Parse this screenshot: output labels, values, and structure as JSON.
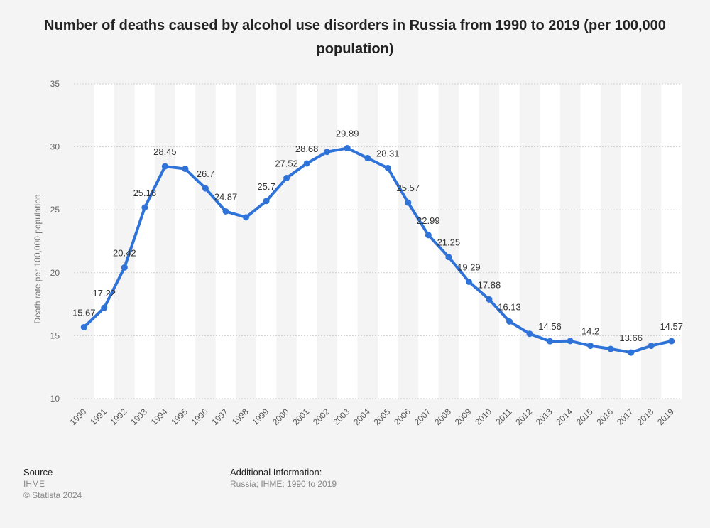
{
  "chart_data": {
    "type": "line",
    "title": "Number of deaths caused by alcohol use disorders in Russia from 1990 to 2019 (per 100,000 population)",
    "xlabel": "",
    "ylabel": "Death rate per 100,000 population",
    "ylim": [
      10,
      35
    ],
    "yticks": [
      10,
      15,
      20,
      25,
      30,
      35
    ],
    "categories": [
      "1990",
      "1991",
      "1992",
      "1993",
      "1994",
      "1995",
      "1996",
      "1997",
      "1998",
      "1999",
      "2000",
      "2001",
      "2002",
      "2003",
      "2004",
      "2005",
      "2006",
      "2007",
      "2008",
      "2009",
      "2010",
      "2011",
      "2012",
      "2013",
      "2014",
      "2015",
      "2016",
      "2017",
      "2018",
      "2019"
    ],
    "values": [
      15.67,
      17.22,
      20.42,
      25.18,
      28.45,
      28.25,
      26.7,
      24.87,
      24.4,
      25.7,
      27.52,
      28.68,
      29.6,
      29.89,
      29.1,
      28.31,
      25.57,
      22.99,
      21.25,
      19.29,
      17.88,
      16.13,
      15.15,
      14.56,
      14.58,
      14.2,
      13.95,
      13.66,
      14.2,
      14.57
    ],
    "data_labels": [
      {
        "index": 0,
        "text": "15.67"
      },
      {
        "index": 1,
        "text": "17.22"
      },
      {
        "index": 2,
        "text": "20.42"
      },
      {
        "index": 3,
        "text": "25.18"
      },
      {
        "index": 4,
        "text": "28.45"
      },
      {
        "index": 6,
        "text": "26.7"
      },
      {
        "index": 7,
        "text": "24.87"
      },
      {
        "index": 9,
        "text": "25.7"
      },
      {
        "index": 10,
        "text": "27.52"
      },
      {
        "index": 11,
        "text": "28.68"
      },
      {
        "index": 13,
        "text": "29.89"
      },
      {
        "index": 15,
        "text": "28.31"
      },
      {
        "index": 16,
        "text": "25.57"
      },
      {
        "index": 17,
        "text": "22.99"
      },
      {
        "index": 18,
        "text": "21.25"
      },
      {
        "index": 19,
        "text": "19.29"
      },
      {
        "index": 20,
        "text": "17.88"
      },
      {
        "index": 21,
        "text": "16.13"
      },
      {
        "index": 23,
        "text": "14.56"
      },
      {
        "index": 25,
        "text": "14.2"
      },
      {
        "index": 27,
        "text": "13.66"
      },
      {
        "index": 29,
        "text": "14.57"
      }
    ],
    "series_color": "#2f73d9",
    "grid": true
  },
  "footer": {
    "source_heading": "Source",
    "source_name": "IHME",
    "copyright": "© Statista 2024",
    "info_heading": "Additional Information:",
    "info_text": "Russia; IHME; 1990 to 2019"
  }
}
